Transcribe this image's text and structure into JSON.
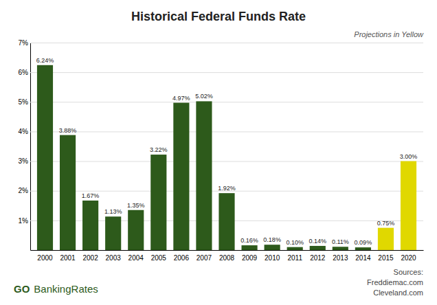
{
  "chart_data": {
    "type": "bar",
    "title": "Historical Federal Funds Rate",
    "categories": [
      "2000",
      "2001",
      "2002",
      "2003",
      "2004",
      "2005",
      "2006",
      "2007",
      "2008",
      "2009",
      "2010",
      "2011",
      "2012",
      "2013",
      "2014",
      "2015",
      "2020"
    ],
    "values": [
      6.24,
      3.88,
      1.67,
      1.13,
      1.35,
      3.22,
      4.97,
      5.02,
      1.92,
      0.16,
      0.18,
      0.1,
      0.14,
      0.11,
      0.09,
      0.75,
      3.0
    ],
    "value_labels": [
      "6.24%",
      "3.88%",
      "1.67%",
      "1.13%",
      "1.35%",
      "3.22%",
      "4.97%",
      "5.02%",
      "1.92%",
      "0.16%",
      "0.18%",
      "0.10%",
      "0.14%",
      "0.11%",
      "0.09%",
      "0.75%",
      "3.00%"
    ],
    "colors": [
      "#2d5a1b",
      "#2d5a1b",
      "#2d5a1b",
      "#2d5a1b",
      "#2d5a1b",
      "#2d5a1b",
      "#2d5a1b",
      "#2d5a1b",
      "#2d5a1b",
      "#2d5a1b",
      "#2d5a1b",
      "#2d5a1b",
      "#2d5a1b",
      "#2d5a1b",
      "#2d5a1b",
      "#e0d800",
      "#e0d800"
    ],
    "ylim": [
      0,
      7
    ],
    "yticks": [
      {
        "value": 1,
        "label": "1%"
      },
      {
        "value": 2,
        "label": "2%"
      },
      {
        "value": 3,
        "label": "3%"
      },
      {
        "value": 4,
        "label": "4%"
      },
      {
        "value": 5,
        "label": "5%"
      },
      {
        "value": 6,
        "label": "6%"
      },
      {
        "value": 7,
        "label": "7%"
      }
    ],
    "grid": true,
    "data_labels": true,
    "annotations": [
      "Projections in Yellow",
      "Sources:",
      "Freddiemac.com",
      "Cleveland.com",
      "GO",
      "BankingRates"
    ]
  }
}
